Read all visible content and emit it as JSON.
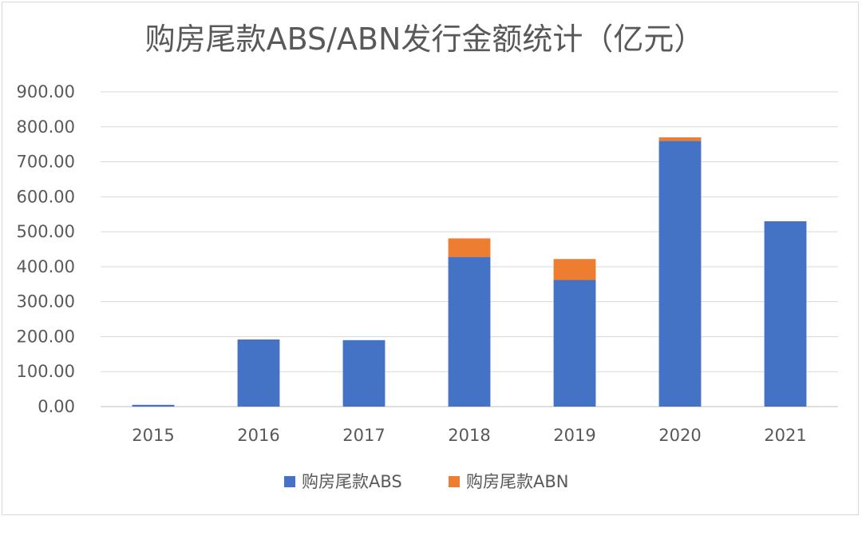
{
  "chart_data": {
    "type": "bar",
    "stacked": true,
    "title": "购房尾款ABS/ABN发行金额统计（亿元）",
    "categories": [
      "2015",
      "2016",
      "2017",
      "2018",
      "2019",
      "2020",
      "2021"
    ],
    "series": [
      {
        "name": "购房尾款ABS",
        "color": "#4472C4",
        "values": [
          5,
          192,
          190,
          428,
          362,
          760,
          530
        ]
      },
      {
        "name": "购房尾款ABN",
        "color": "#ED7D31",
        "values": [
          0,
          0,
          0,
          53,
          60,
          10,
          0
        ]
      }
    ],
    "ylim": [
      0,
      900
    ],
    "yticks": [
      "0.00",
      "100.00",
      "200.00",
      "300.00",
      "400.00",
      "500.00",
      "600.00",
      "700.00",
      "800.00",
      "900.00"
    ],
    "grid": true,
    "legend_position": "bottom"
  }
}
